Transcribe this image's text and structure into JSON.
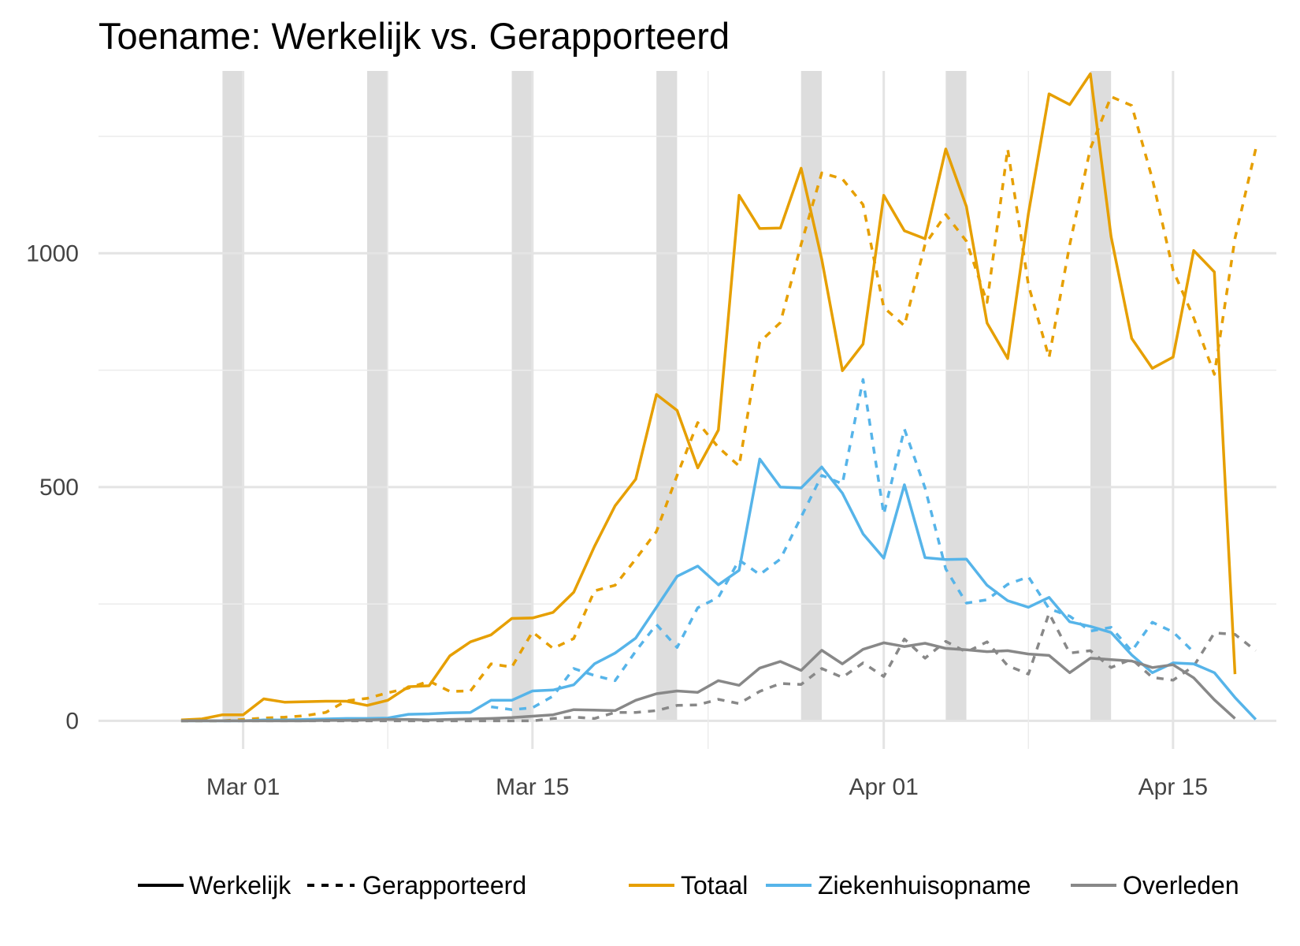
{
  "chart_data": {
    "type": "line",
    "title": "Toename: Werkelijk vs. Gerapporteerd",
    "xlabel": "",
    "ylabel": "",
    "x_start": "2020-02-27",
    "x_end": "2020-04-17",
    "xlim": [
      "2020-02-23",
      "2020-04-20"
    ],
    "ylim": [
      -60,
      1390
    ],
    "yticks": [
      0,
      500,
      1000
    ],
    "ytick_labels": [
      "0",
      "500",
      "1000"
    ],
    "xticks": [
      "2020-03-01",
      "2020-03-15",
      "2020-04-01",
      "2020-04-15"
    ],
    "xtick_labels": [
      "Mar 01",
      "Mar 15",
      "Apr 01",
      "Apr 15"
    ],
    "grid": true,
    "weekend_shading": [
      [
        "2020-02-29",
        "2020-03-01"
      ],
      [
        "2020-03-07",
        "2020-03-08"
      ],
      [
        "2020-03-14",
        "2020-03-15"
      ],
      [
        "2020-03-21",
        "2020-03-22"
      ],
      [
        "2020-03-28",
        "2020-03-29"
      ],
      [
        "2020-04-04",
        "2020-04-05"
      ],
      [
        "2020-04-11",
        "2020-04-12"
      ]
    ],
    "legend_position": "bottom",
    "linetype_legend": [
      "Werkelijk",
      "Gerapporteerd"
    ],
    "series": [
      {
        "name": "Totaal",
        "color": "#E69F00",
        "linetype": "solid",
        "start": "2020-02-27",
        "values": [
          2,
          4,
          13,
          13,
          47,
          40,
          41,
          42,
          42,
          33,
          44,
          73,
          75,
          139,
          169,
          184,
          219,
          220,
          232,
          275,
          373,
          460,
          517,
          698,
          664,
          541,
          622,
          1124,
          1053,
          1054,
          1182,
          987,
          749,
          806,
          1124,
          1048,
          1031,
          1223,
          1100,
          851,
          775,
          1085,
          1341,
          1318,
          1384,
          1036,
          818,
          754,
          778,
          1006,
          960,
          100
        ]
      },
      {
        "name": "Ziekenhuisopname",
        "color": "#56B4E9",
        "linetype": "solid",
        "start": "2020-02-27",
        "values": [
          0,
          0,
          0,
          0,
          2,
          2,
          3,
          4,
          5,
          5,
          6,
          14,
          15,
          17,
          18,
          44,
          44,
          64,
          66,
          77,
          122,
          145,
          177,
          243,
          309,
          331,
          291,
          322,
          560,
          500,
          498,
          543,
          487,
          400,
          348,
          505,
          349,
          345,
          346,
          290,
          257,
          243,
          264,
          212,
          202,
          189,
          141,
          103,
          124,
          122,
          103,
          50,
          3
        ]
      },
      {
        "name": "Overleden",
        "color": "#888888",
        "linetype": "solid",
        "start": "2020-02-27",
        "values": [
          0,
          0,
          0,
          0,
          0,
          0,
          0,
          1,
          1,
          2,
          3,
          3,
          2,
          3,
          4,
          5,
          7,
          10,
          13,
          24,
          23,
          22,
          44,
          58,
          64,
          61,
          86,
          76,
          113,
          127,
          108,
          151,
          122,
          153,
          167,
          159,
          166,
          155,
          152,
          148,
          150,
          143,
          140,
          103,
          134,
          131,
          128,
          114,
          120,
          92,
          45,
          5
        ]
      },
      {
        "name": "Totaal",
        "color": "#E69F00",
        "linetype": "dashed",
        "start": "2020-02-27",
        "values": [
          0,
          0,
          0,
          3,
          6,
          8,
          11,
          18,
          43,
          48,
          60,
          70,
          85,
          63,
          64,
          122,
          115,
          190,
          155,
          176,
          278,
          290,
          346,
          405,
          525,
          638,
          585,
          545,
          810,
          852,
          1019,
          1172,
          1159,
          1104,
          884,
          845,
          1019,
          1083,
          1026,
          895,
          1223,
          932,
          777,
          1018,
          1224,
          1335,
          1316,
          1159,
          964,
          862,
          741,
          1032,
          1223
        ]
      },
      {
        "name": "Ziekenhuisopname",
        "color": "#56B4E9",
        "linetype": "dashed",
        "start": "2020-03-13",
        "values": [
          30,
          24,
          28,
          53,
          112,
          97,
          86,
          149,
          206,
          157,
          242,
          264,
          344,
          313,
          346,
          436,
          525,
          507,
          730,
          442,
          624,
          498,
          325,
          252,
          259,
          292,
          308,
          240,
          224,
          192,
          200,
          149,
          211,
          190,
          147
        ]
      },
      {
        "name": "Overleden",
        "color": "#888888",
        "linetype": "dashed",
        "start": "2020-02-27",
        "values": [
          0,
          0,
          0,
          0,
          0,
          0,
          0,
          0,
          0,
          0,
          0,
          0,
          0,
          0,
          0,
          0,
          0,
          0,
          5,
          8,
          5,
          18,
          18,
          22,
          33,
          34,
          46,
          37,
          63,
          80,
          78,
          112,
          93,
          124,
          95,
          175,
          134,
          170,
          147,
          169,
          118,
          100,
          230,
          145,
          150,
          114,
          132,
          93,
          87,
          117,
          188,
          185,
          150
        ]
      }
    ]
  }
}
